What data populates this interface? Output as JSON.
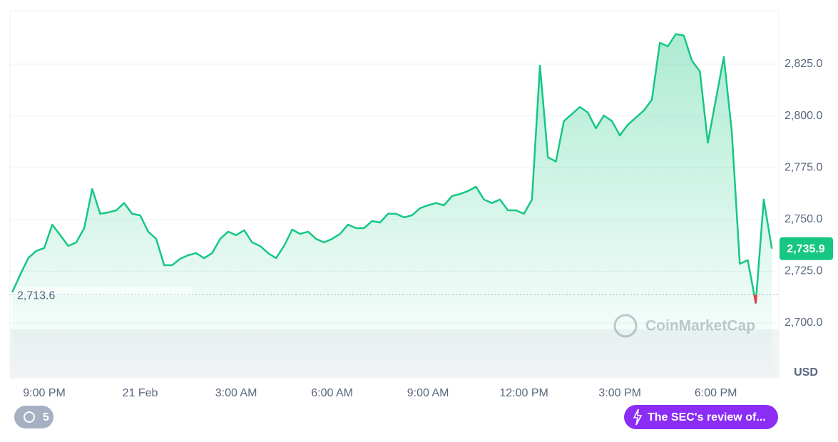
{
  "chart_data": {
    "type": "line",
    "categories": [
      null,
      null,
      null,
      null,
      "9:00 PM",
      null,
      null,
      null,
      null,
      null,
      null,
      null,
      null,
      null,
      null,
      null,
      "21 Feb",
      null,
      null,
      null,
      null,
      null,
      null,
      null,
      null,
      null,
      null,
      null,
      "3:00 AM",
      null,
      null,
      null,
      null,
      null,
      null,
      null,
      null,
      null,
      null,
      null,
      "6:00 AM",
      null,
      null,
      null,
      null,
      null,
      null,
      null,
      null,
      null,
      null,
      null,
      "9:00 AM",
      null,
      null,
      null,
      null,
      null,
      null,
      null,
      null,
      null,
      null,
      null,
      "12:00 PM",
      null,
      null,
      null,
      null,
      null,
      null,
      null,
      null,
      null,
      null,
      null,
      "3:00 PM",
      null,
      null,
      null,
      null,
      null,
      null,
      null,
      null,
      null,
      null,
      null,
      "6:00 PM",
      null,
      null,
      null,
      null,
      null,
      null,
      null
    ],
    "values": [
      2714.8,
      2723.4,
      2731.3,
      2734.8,
      2736.2,
      2747.5,
      2742.4,
      2737.2,
      2738.9,
      2745.8,
      2764.7,
      2752.7,
      2753.4,
      2754.4,
      2757.9,
      2752.7,
      2752.0,
      2744.1,
      2740.6,
      2727.9,
      2727.9,
      2731.0,
      2732.7,
      2733.7,
      2731.3,
      2733.7,
      2740.6,
      2744.1,
      2742.4,
      2744.8,
      2738.9,
      2737.2,
      2733.7,
      2731.3,
      2737.2,
      2745.1,
      2743.0,
      2744.1,
      2740.6,
      2738.9,
      2740.6,
      2743.0,
      2747.5,
      2745.8,
      2745.8,
      2749.2,
      2748.5,
      2752.7,
      2752.7,
      2751.0,
      2752.0,
      2755.4,
      2756.8,
      2757.9,
      2756.8,
      2761.3,
      2762.3,
      2763.7,
      2765.8,
      2759.6,
      2757.9,
      2759.6,
      2754.4,
      2754.4,
      2752.7,
      2759.6,
      2824.3,
      2780.0,
      2778.0,
      2797.5,
      2800.9,
      2804.3,
      2801.6,
      2794.0,
      2800.2,
      2797.5,
      2790.6,
      2795.8,
      2799.2,
      2802.6,
      2807.8,
      2835.3,
      2833.6,
      2839.5,
      2838.8,
      2826.7,
      2821.5,
      2787.1,
      2807.8,
      2828.5,
      2792.3,
      2728.6,
      2730.3,
      2709.6,
      2759.6,
      2735.9
    ],
    "color": "#16c784",
    "down_color": "#ea3943",
    "ylim": [
      2673.5,
      2850.8
    ],
    "yticks": [
      {
        "value": 2700,
        "label": "2,700.0"
      },
      {
        "value": 2725,
        "label": "2,725.0"
      },
      {
        "value": 2750,
        "label": "2,750.0"
      },
      {
        "value": 2775,
        "label": "2,775.0"
      },
      {
        "value": 2800,
        "label": "2,800.0"
      },
      {
        "value": 2825,
        "label": "2,825.0"
      }
    ],
    "grid": true,
    "open_price": {
      "value": 2713.6,
      "label": "2,713.6"
    },
    "last_price": {
      "value": 2735.9,
      "label": "2,735.9"
    },
    "currency": "USD",
    "watermark": "CoinMarketCap",
    "history_count": 5,
    "news": "The SEC's review of..."
  }
}
